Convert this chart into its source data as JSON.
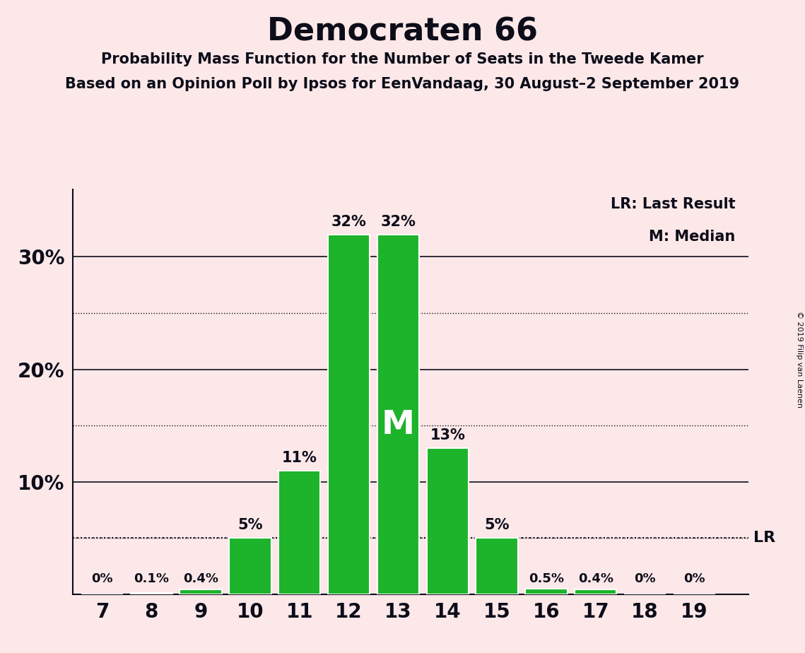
{
  "title": "Democraten 66",
  "subtitle1": "Probability Mass Function for the Number of Seats in the Tweede Kamer",
  "subtitle2": "Based on an Opinion Poll by Ipsos for EenVandaag, 30 August–2 September 2019",
  "copyright": "© 2019 Filip van Laenen",
  "seats": [
    7,
    8,
    9,
    10,
    11,
    12,
    13,
    14,
    15,
    16,
    17,
    18,
    19
  ],
  "probabilities": [
    0.0,
    0.1,
    0.4,
    5.0,
    11.0,
    32.0,
    32.0,
    13.0,
    5.0,
    0.5,
    0.4,
    0.0,
    0.0
  ],
  "labels": [
    "0%",
    "0.1%",
    "0.4%",
    "5%",
    "11%",
    "32%",
    "32%",
    "13%",
    "5%",
    "0.5%",
    "0.4%",
    "0%",
    "0%"
  ],
  "bar_color": "#1db32a",
  "bar_edge_color": "#ffffff",
  "background_color": "#fce8e8",
  "text_color": "#0d0d1a",
  "median_seat": 13,
  "lr_value": 5.0,
  "lr_label": "LR",
  "legend_lr": "LR: Last Result",
  "legend_m": "M: Median",
  "ytick_values": [
    10,
    20,
    30
  ],
  "ytick_labels": [
    "10%",
    "20%",
    "30%"
  ],
  "solid_grid_lines": [
    10,
    20,
    30
  ],
  "dotted_grid_lines": [
    5,
    15,
    25
  ],
  "ylim": [
    0,
    36
  ],
  "xlim_left": 6.4,
  "xlim_right": 20.1
}
